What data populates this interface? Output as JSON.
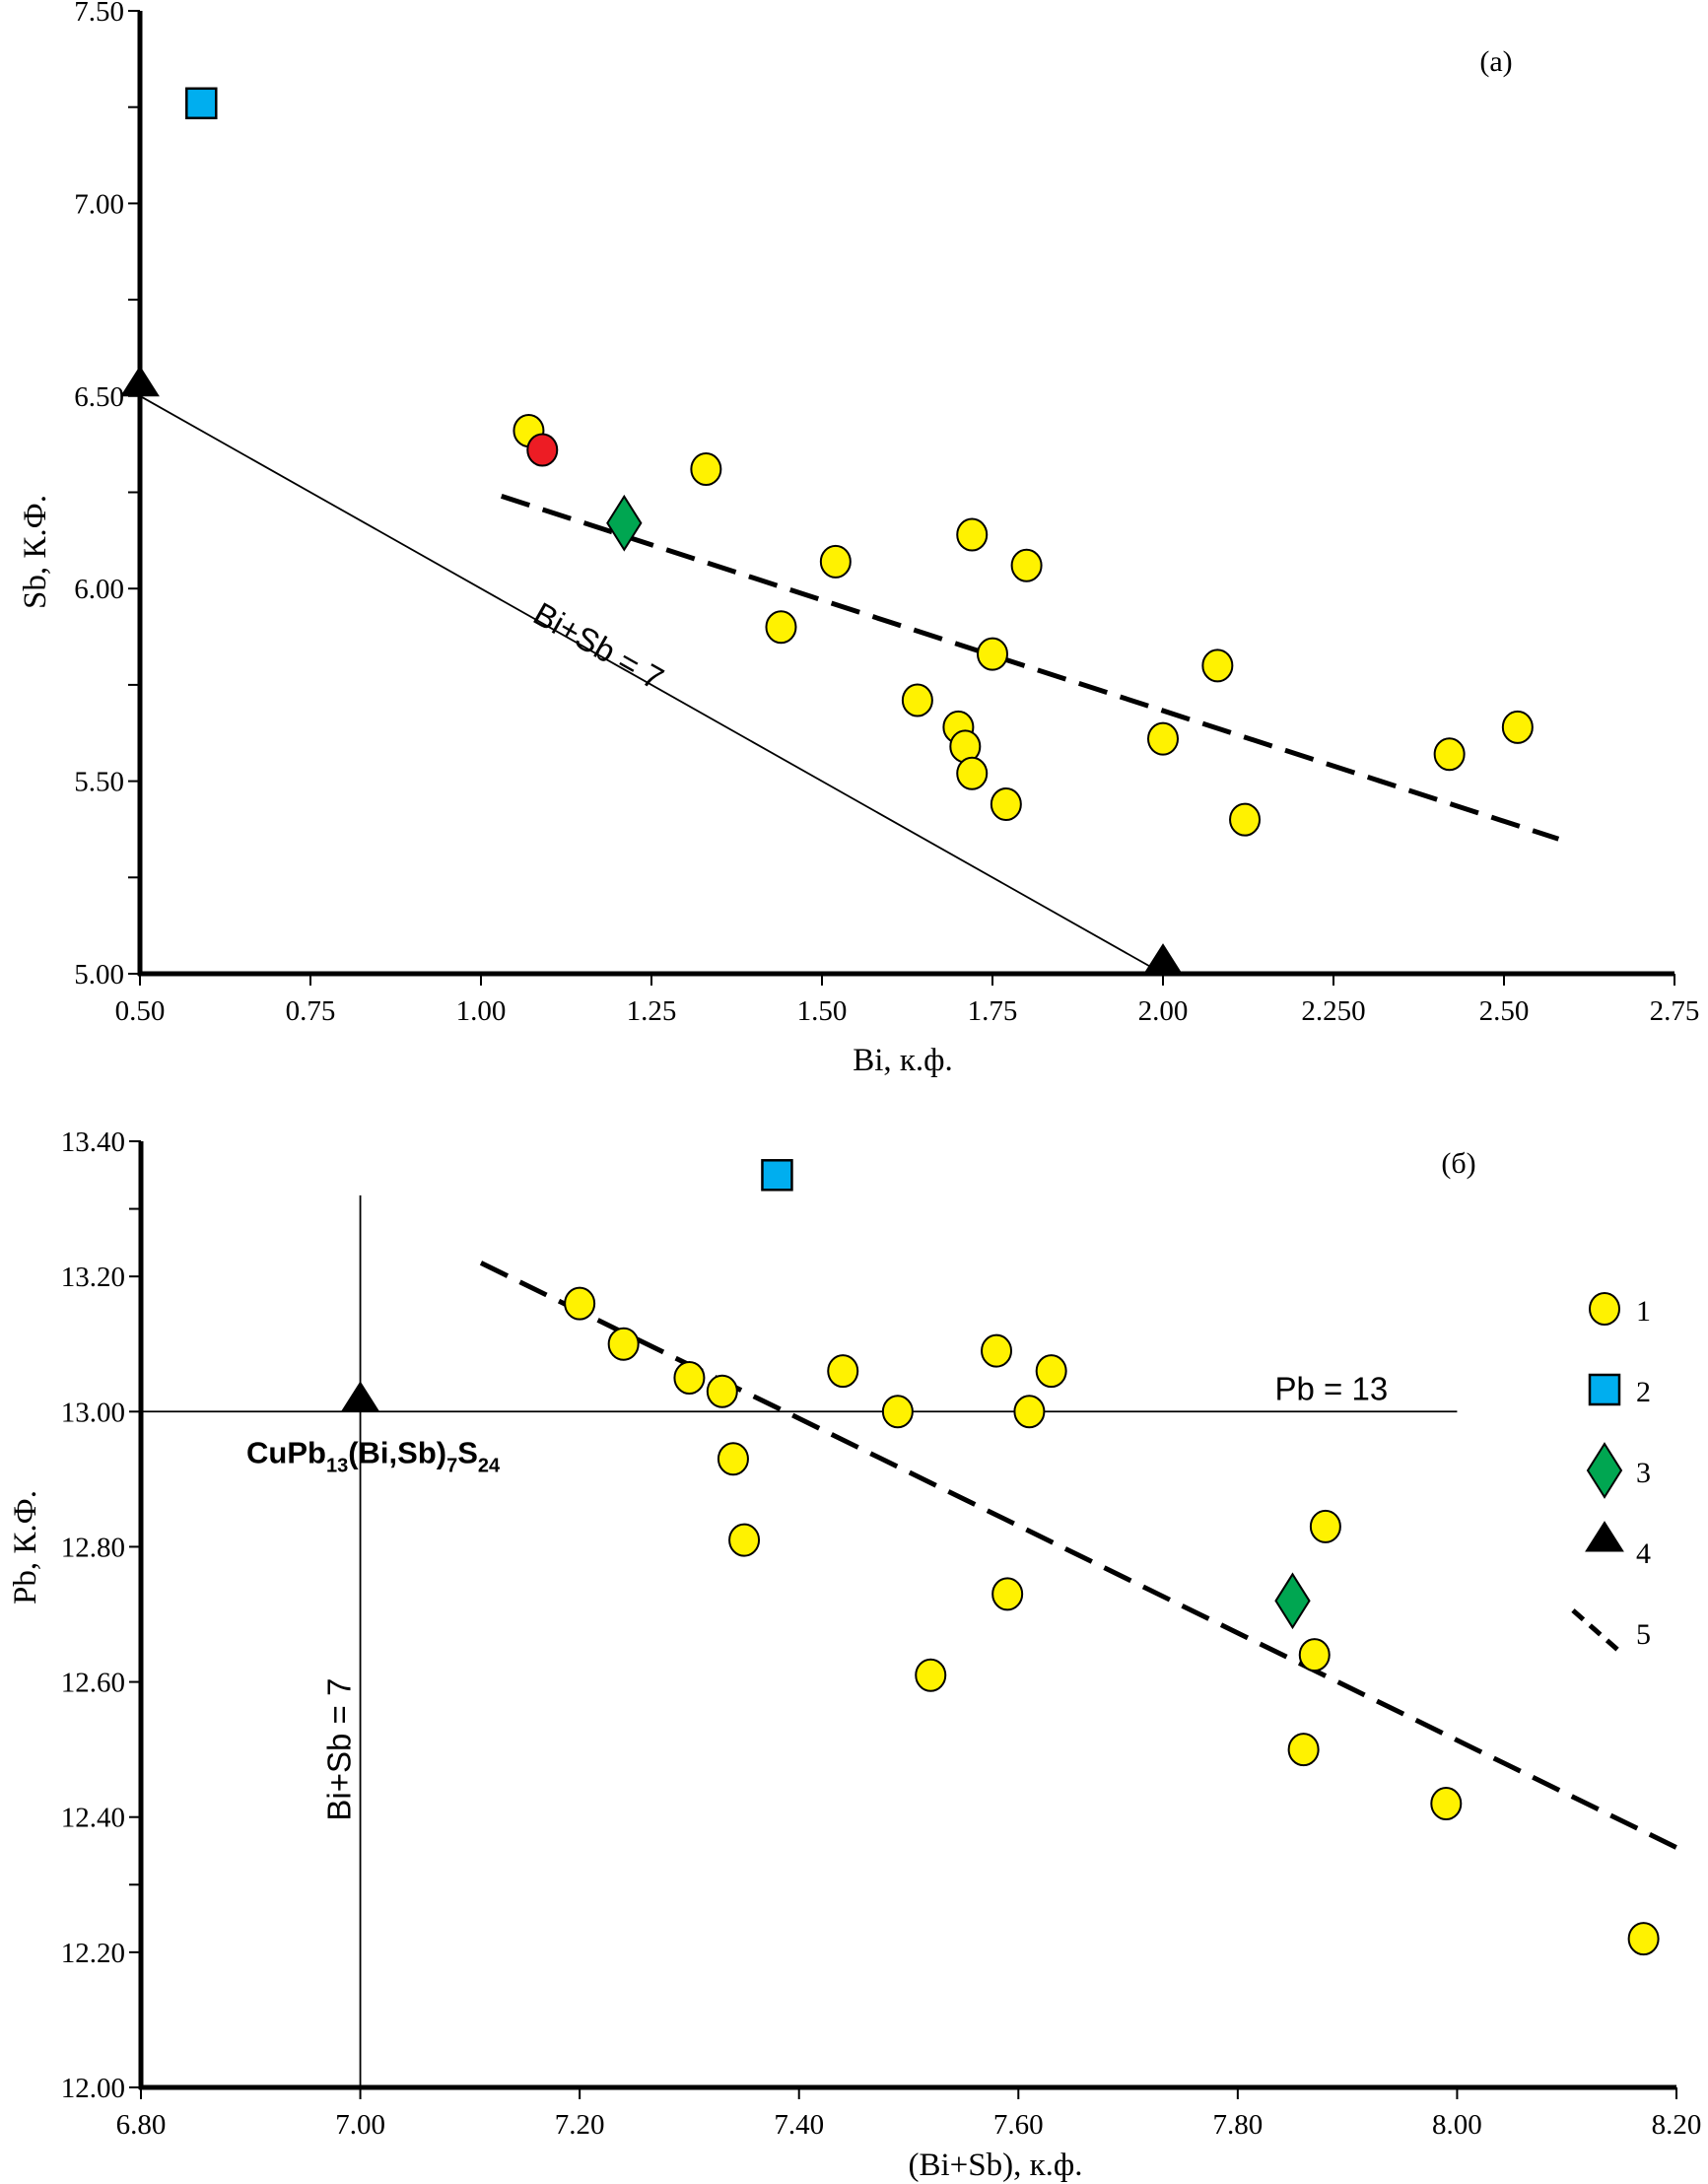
{
  "chart_data": [
    {
      "id": "a",
      "type": "scatter",
      "panel_label": "(a)",
      "title": "",
      "xlabel": "Bi, к.ф.",
      "ylabel": "Sb, К.Ф.",
      "xlim": [
        0.5,
        2.75
      ],
      "ylim": [
        5.0,
        7.5
      ],
      "grid": false,
      "x_ticks": [
        0.5,
        0.75,
        1.0,
        1.25,
        1.5,
        1.75,
        2.0,
        2.25,
        2.5,
        2.75
      ],
      "x_tick_labels": [
        "0.50",
        "0.75",
        "1.00",
        "1.25",
        "1.50",
        "1.75",
        "2.00",
        "2.250",
        "2.50",
        "2.75"
      ],
      "y_ticks": [
        5.0,
        5.5,
        6.0,
        6.5,
        7.0,
        7.5
      ],
      "y_tick_labels": [
        "5.00",
        "5.50",
        "6.00",
        "6.50",
        "7.00",
        "7.50"
      ],
      "y_minor_ticks": [
        5.25,
        5.75,
        6.25,
        6.75,
        7.25
      ],
      "series": [
        {
          "name": "1",
          "marker": "circle",
          "color": "#FFF200",
          "points": [
            [
              1.07,
              6.41
            ],
            [
              1.33,
              6.31
            ],
            [
              1.52,
              6.07
            ],
            [
              1.44,
              5.9
            ],
            [
              1.72,
              6.14
            ],
            [
              1.8,
              6.06
            ],
            [
              1.75,
              5.83
            ],
            [
              1.64,
              5.71
            ],
            [
              1.7,
              5.64
            ],
            [
              1.71,
              5.59
            ],
            [
              1.72,
              5.52
            ],
            [
              1.77,
              5.44
            ],
            [
              2.08,
              5.8
            ],
            [
              2.0,
              5.61
            ],
            [
              2.12,
              5.4
            ],
            [
              2.42,
              5.57
            ],
            [
              2.52,
              5.64
            ]
          ]
        },
        {
          "name": "1 (red)",
          "marker": "circle",
          "color": "#ED1C24",
          "points": [
            [
              1.09,
              6.36
            ]
          ]
        },
        {
          "name": "2",
          "marker": "square",
          "color": "#00AEEF",
          "points": [
            [
              0.59,
              7.26
            ]
          ]
        },
        {
          "name": "3",
          "marker": "diamond",
          "color": "#00A651",
          "points": [
            [
              1.21,
              6.17
            ]
          ]
        },
        {
          "name": "4",
          "marker": "triangle",
          "color": "#000000",
          "points": [
            [
              0.5,
              6.5
            ],
            [
              2.0,
              5.0
            ]
          ]
        }
      ],
      "lines": [
        {
          "name": "Bi+Sb = 7",
          "style": "solid",
          "points": [
            [
              0.5,
              6.5
            ],
            [
              2.0,
              5.0
            ]
          ]
        },
        {
          "name": "5",
          "style": "dashed",
          "points": [
            [
              1.03,
              6.24
            ],
            [
              2.58,
              5.35
            ]
          ]
        }
      ],
      "annotations": [
        {
          "text": "Bi+Sb = 7",
          "at": [
            1.15,
            5.8
          ],
          "rotation": "along line"
        }
      ]
    },
    {
      "id": "b",
      "type": "scatter",
      "panel_label": "(б)",
      "title": "",
      "xlabel": "(Bi+Sb), к.ф.",
      "ylabel": "Pb, К.Ф.",
      "xlim": [
        6.8,
        8.2
      ],
      "ylim": [
        12.0,
        13.4
      ],
      "grid": false,
      "x_ticks": [
        6.8,
        7.0,
        7.2,
        7.4,
        7.6,
        7.8,
        8.0,
        8.2
      ],
      "x_tick_labels": [
        "6.80",
        "7.00",
        "7.20",
        "7.40",
        "7.60",
        "7.80",
        "8.00",
        "8.20"
      ],
      "y_ticks": [
        12.0,
        12.2,
        12.4,
        12.6,
        12.8,
        13.0,
        13.2,
        13.4
      ],
      "y_tick_labels": [
        "12.00",
        "12.20",
        "12.40",
        "12.60",
        "12.80",
        "13.00",
        "13.20",
        "13.40"
      ],
      "y_minor_ticks": [
        12.3,
        13.3
      ],
      "series": [
        {
          "name": "1",
          "marker": "circle",
          "color": "#FFF200",
          "points": [
            [
              7.2,
              13.16
            ],
            [
              7.24,
              13.1
            ],
            [
              7.3,
              13.05
            ],
            [
              7.33,
              13.03
            ],
            [
              7.44,
              13.06
            ],
            [
              7.34,
              12.93
            ],
            [
              7.35,
              12.81
            ],
            [
              7.49,
              13.0
            ],
            [
              7.58,
              13.09
            ],
            [
              7.63,
              13.06
            ],
            [
              7.61,
              13.0
            ],
            [
              7.59,
              12.73
            ],
            [
              7.52,
              12.61
            ],
            [
              7.88,
              12.83
            ],
            [
              7.87,
              12.64
            ],
            [
              7.86,
              12.5
            ],
            [
              7.99,
              12.42
            ],
            [
              8.17,
              12.22
            ]
          ]
        },
        {
          "name": "2",
          "marker": "square",
          "color": "#00AEEF",
          "points": [
            [
              7.38,
              13.35
            ]
          ]
        },
        {
          "name": "3",
          "marker": "diamond",
          "color": "#00A651",
          "points": [
            [
              7.85,
              12.72
            ]
          ]
        },
        {
          "name": "4",
          "marker": "triangle",
          "color": "#000000",
          "points": [
            [
              7.0,
              13.0
            ]
          ]
        }
      ],
      "lines": [
        {
          "name": "Pb = 13",
          "style": "solid",
          "points": [
            [
              6.8,
              13.0
            ],
            [
              8.0,
              13.0
            ]
          ]
        },
        {
          "name": "Bi+Sb = 7",
          "style": "solid",
          "points": [
            [
              7.0,
              13.32
            ],
            [
              7.0,
              12.0
            ]
          ]
        },
        {
          "name": "5",
          "style": "dashed",
          "points": [
            [
              7.11,
              13.22
            ],
            [
              8.2,
              12.355
            ]
          ]
        }
      ],
      "annotations": [
        {
          "text": "Pb = 13",
          "at": [
            7.8,
            13.03
          ]
        },
        {
          "text": "Bi+Sb = 7",
          "at": [
            6.98,
            12.5
          ],
          "rotation": "vertical"
        },
        {
          "text": "CuPb13(Bi,Sb)7S24",
          "parts": [
            "CuPb",
            "13",
            "(Bi,Sb)",
            "7",
            "S",
            "24"
          ],
          "at": [
            6.88,
            12.94
          ]
        }
      ],
      "legend": {
        "placement": "right",
        "items": [
          {
            "label": "1",
            "marker": "circle",
            "color": "#FFF200"
          },
          {
            "label": "2",
            "marker": "square",
            "color": "#00AEEF"
          },
          {
            "label": "3",
            "marker": "diamond",
            "color": "#00A651"
          },
          {
            "label": "4",
            "marker": "triangle",
            "color": "#000000"
          },
          {
            "label": "5",
            "marker": "dashed-line",
            "color": "#000000"
          }
        ]
      }
    }
  ]
}
